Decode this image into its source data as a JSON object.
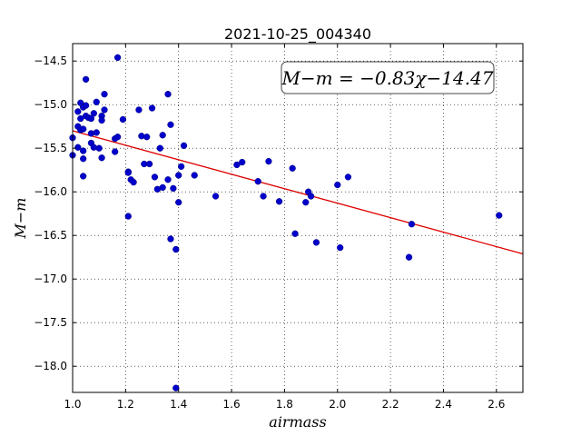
{
  "chart_data": {
    "type": "scatter",
    "title": "2021-10-25_004340",
    "xlabel": "airmass",
    "ylabel": "M−m",
    "xlim": [
      1.0,
      2.7
    ],
    "ylim": [
      -14.3,
      -18.3
    ],
    "y_inverted": true,
    "grid": true,
    "grid_style": "dotted",
    "xticks": [
      "1.0",
      "1.2",
      "1.4",
      "1.6",
      "1.8",
      "2.0",
      "2.2",
      "2.4",
      "2.6"
    ],
    "yticks": [
      "−14.5",
      "−15.0",
      "−15.5",
      "−16.0",
      "−16.5",
      "−17.0",
      "−17.5",
      "−18.0"
    ],
    "annotation": "M−m = −0.83χ−14.47",
    "annotation_position": "top-right",
    "marker_color": "#0000cc",
    "fit_color": "#dd0000",
    "fit_line": {
      "slope": -0.83,
      "intercept": -14.47
    },
    "points": [
      {
        "x": 1.0,
        "y": -15.38
      },
      {
        "x": 1.0,
        "y": -15.58
      },
      {
        "x": 1.02,
        "y": -15.25
      },
      {
        "x": 1.02,
        "y": -15.08
      },
      {
        "x": 1.02,
        "y": -15.49
      },
      {
        "x": 1.03,
        "y": -15.29
      },
      {
        "x": 1.03,
        "y": -15.16
      },
      {
        "x": 1.03,
        "y": -14.98
      },
      {
        "x": 1.04,
        "y": -15.03
      },
      {
        "x": 1.04,
        "y": -15.28
      },
      {
        "x": 1.04,
        "y": -15.53
      },
      {
        "x": 1.04,
        "y": -15.62
      },
      {
        "x": 1.04,
        "y": -15.82
      },
      {
        "x": 1.05,
        "y": -14.71
      },
      {
        "x": 1.05,
        "y": -15.01
      },
      {
        "x": 1.05,
        "y": -15.13
      },
      {
        "x": 1.06,
        "y": -15.15
      },
      {
        "x": 1.07,
        "y": -15.16
      },
      {
        "x": 1.07,
        "y": -15.33
      },
      {
        "x": 1.07,
        "y": -15.44
      },
      {
        "x": 1.08,
        "y": -15.1
      },
      {
        "x": 1.08,
        "y": -15.49
      },
      {
        "x": 1.09,
        "y": -14.97
      },
      {
        "x": 1.09,
        "y": -15.32
      },
      {
        "x": 1.1,
        "y": -15.5
      },
      {
        "x": 1.11,
        "y": -15.13
      },
      {
        "x": 1.11,
        "y": -15.18
      },
      {
        "x": 1.11,
        "y": -15.61
      },
      {
        "x": 1.12,
        "y": -14.88
      },
      {
        "x": 1.12,
        "y": -15.06
      },
      {
        "x": 1.16,
        "y": -15.54
      },
      {
        "x": 1.16,
        "y": -15.39
      },
      {
        "x": 1.17,
        "y": -15.37
      },
      {
        "x": 1.17,
        "y": -14.46
      },
      {
        "x": 1.19,
        "y": -15.17
      },
      {
        "x": 1.21,
        "y": -15.77
      },
      {
        "x": 1.21,
        "y": -15.78
      },
      {
        "x": 1.21,
        "y": -16.28
      },
      {
        "x": 1.22,
        "y": -15.86
      },
      {
        "x": 1.23,
        "y": -15.89
      },
      {
        "x": 1.25,
        "y": -15.06
      },
      {
        "x": 1.26,
        "y": -15.36
      },
      {
        "x": 1.27,
        "y": -15.68
      },
      {
        "x": 1.28,
        "y": -15.37
      },
      {
        "x": 1.29,
        "y": -15.68
      },
      {
        "x": 1.3,
        "y": -15.04
      },
      {
        "x": 1.31,
        "y": -15.83
      },
      {
        "x": 1.32,
        "y": -15.97
      },
      {
        "x": 1.33,
        "y": -15.5
      },
      {
        "x": 1.34,
        "y": -15.95
      },
      {
        "x": 1.34,
        "y": -15.35
      },
      {
        "x": 1.36,
        "y": -15.86
      },
      {
        "x": 1.36,
        "y": -14.88
      },
      {
        "x": 1.37,
        "y": -16.54
      },
      {
        "x": 1.37,
        "y": -15.23
      },
      {
        "x": 1.38,
        "y": -15.96
      },
      {
        "x": 1.39,
        "y": -16.66
      },
      {
        "x": 1.39,
        "y": -18.25
      },
      {
        "x": 1.4,
        "y": -16.12
      },
      {
        "x": 1.4,
        "y": -15.81
      },
      {
        "x": 1.41,
        "y": -15.71
      },
      {
        "x": 1.42,
        "y": -15.47
      },
      {
        "x": 1.46,
        "y": -15.81
      },
      {
        "x": 1.54,
        "y": -16.05
      },
      {
        "x": 1.62,
        "y": -15.69
      },
      {
        "x": 1.64,
        "y": -15.66
      },
      {
        "x": 1.7,
        "y": -15.88
      },
      {
        "x": 1.72,
        "y": -16.05
      },
      {
        "x": 1.74,
        "y": -15.65
      },
      {
        "x": 1.78,
        "y": -16.11
      },
      {
        "x": 1.83,
        "y": -15.73
      },
      {
        "x": 1.84,
        "y": -16.48
      },
      {
        "x": 1.88,
        "y": -16.12
      },
      {
        "x": 1.89,
        "y": -16.0
      },
      {
        "x": 1.9,
        "y": -16.05
      },
      {
        "x": 1.92,
        "y": -16.58
      },
      {
        "x": 2.0,
        "y": -15.92
      },
      {
        "x": 2.01,
        "y": -16.64
      },
      {
        "x": 2.04,
        "y": -15.83
      },
      {
        "x": 2.27,
        "y": -16.75
      },
      {
        "x": 2.28,
        "y": -16.37
      },
      {
        "x": 2.61,
        "y": -16.27
      }
    ]
  }
}
